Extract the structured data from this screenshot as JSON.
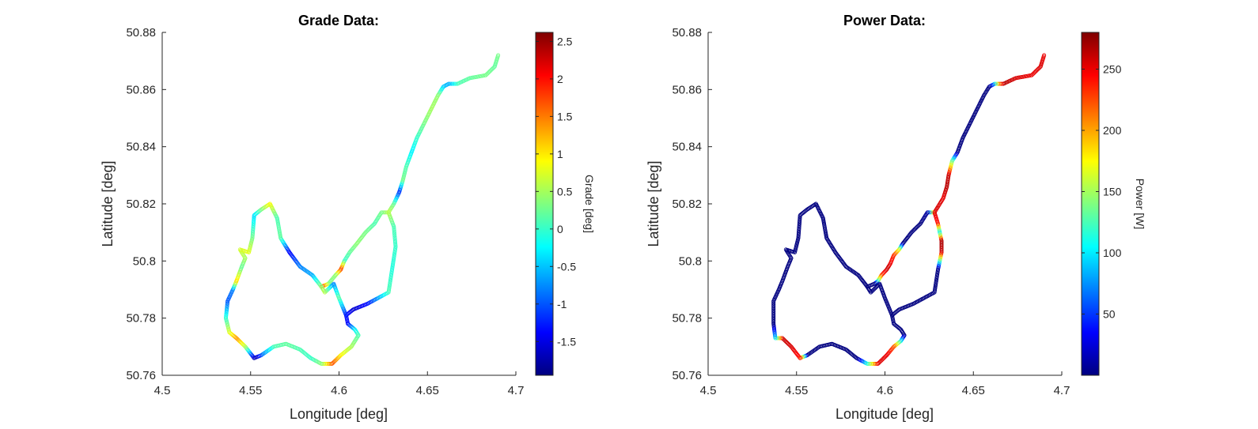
{
  "chart_data": [
    {
      "type": "scatter",
      "title": "Grade Data:",
      "xlabel": "Longitude [deg]",
      "ylabel": "Latitude [deg]",
      "xlim": [
        4.5,
        4.7
      ],
      "ylim": [
        50.76,
        50.88
      ],
      "xticks": [
        4.5,
        4.55,
        4.6,
        4.65,
        4.7
      ],
      "xtick_labels": [
        "4.5",
        "4.55",
        "4.6",
        "4.65",
        "4.7"
      ],
      "yticks": [
        50.76,
        50.78,
        50.8,
        50.82,
        50.84,
        50.86,
        50.88
      ],
      "ytick_labels": [
        "50.76",
        "50.78",
        "50.8",
        "50.82",
        "50.84",
        "50.86",
        "50.88"
      ],
      "grid": false,
      "marker": "circle-open",
      "colormap": "jet",
      "colorbar": {
        "label": "Grade [deg]",
        "range": [
          -1.95,
          2.62
        ],
        "ticks": [
          -1.5,
          -1,
          -0.5,
          0,
          0.5,
          1,
          1.5,
          2,
          2.5
        ],
        "tick_labels": [
          "-1.5",
          "-1",
          "-0.5",
          "0",
          "0.5",
          "1",
          "1.5",
          "2",
          "2.5"
        ]
      },
      "segments": [
        {
          "route": "north",
          "points": [
            [
              4.69,
              50.872,
              0.3
            ],
            [
              4.688,
              50.868,
              0.2
            ],
            [
              4.683,
              50.865,
              0.3
            ],
            [
              4.674,
              50.864,
              0.2
            ],
            [
              4.667,
              50.862,
              0.1
            ],
            [
              4.662,
              50.862,
              -0.6
            ],
            [
              4.659,
              50.861,
              -0.5
            ],
            [
              4.656,
              50.858,
              0.4
            ],
            [
              4.652,
              50.853,
              0.5
            ],
            [
              4.648,
              50.848,
              0.3
            ],
            [
              4.644,
              50.843,
              0.0
            ],
            [
              4.641,
              50.838,
              -0.3
            ],
            [
              4.638,
              50.833,
              0.1
            ],
            [
              4.636,
              50.828,
              0.3
            ],
            [
              4.634,
              50.824,
              -1.2
            ],
            [
              4.631,
              50.82,
              0.2
            ],
            [
              4.628,
              50.817,
              0.6
            ],
            [
              4.624,
              50.817,
              0.3
            ],
            [
              4.62,
              50.813,
              0.1
            ],
            [
              4.615,
              50.81,
              0.3
            ],
            [
              4.61,
              50.806,
              0.4
            ],
            [
              4.606,
              50.803,
              0.2
            ],
            [
              4.603,
              50.8,
              0.0
            ],
            [
              4.601,
              50.797,
              1.8
            ],
            [
              4.598,
              50.795,
              0.4
            ],
            [
              4.594,
              50.792,
              0.3
            ],
            [
              4.59,
              50.791,
              1.9
            ]
          ]
        },
        {
          "route": "east-loop",
          "points": [
            [
              4.628,
              50.817,
              0.6
            ],
            [
              4.631,
              50.812,
              0.1
            ],
            [
              4.632,
              50.805,
              0.0
            ],
            [
              4.63,
              50.797,
              -0.1
            ],
            [
              4.628,
              50.789,
              0.1
            ],
            [
              4.622,
              50.787,
              -0.6
            ],
            [
              4.616,
              50.785,
              -1.3
            ],
            [
              4.608,
              50.783,
              -1.6
            ],
            [
              4.604,
              50.781,
              -1.3
            ],
            [
              4.605,
              50.778,
              -1.4
            ],
            [
              4.609,
              50.776,
              -0.3
            ],
            [
              4.611,
              50.774,
              0.1
            ],
            [
              4.607,
              50.77,
              0.5
            ],
            [
              4.601,
              50.767,
              0.9
            ],
            [
              4.596,
              50.764,
              1.7
            ],
            [
              4.59,
              50.764,
              0.4
            ],
            [
              4.584,
              50.766,
              0.0
            ],
            [
              4.578,
              50.769,
              0.1
            ],
            [
              4.57,
              50.771,
              0.2
            ],
            [
              4.563,
              50.77,
              0.1
            ],
            [
              4.556,
              50.767,
              -0.9
            ],
            [
              4.552,
              50.766,
              -1.8
            ],
            [
              4.547,
              50.77,
              0.5
            ],
            [
              4.542,
              50.773,
              1.4
            ],
            [
              4.538,
              50.775,
              0.8
            ],
            [
              4.536,
              50.78,
              0.0
            ],
            [
              4.537,
              50.786,
              -1.0
            ],
            [
              4.54,
              50.79,
              -0.8
            ],
            [
              4.542,
              50.793,
              1.1
            ],
            [
              4.545,
              50.798,
              0.2
            ],
            [
              4.547,
              50.801,
              0.5
            ],
            [
              4.544,
              50.804,
              0.7
            ],
            [
              4.549,
              50.803,
              0.8
            ],
            [
              4.551,
              50.808,
              0.3
            ],
            [
              4.552,
              50.816,
              -0.4
            ],
            [
              4.556,
              50.818,
              0.3
            ],
            [
              4.561,
              50.82,
              0.9
            ],
            [
              4.565,
              50.815,
              0.1
            ],
            [
              4.567,
              50.808,
              0.2
            ],
            [
              4.572,
              50.803,
              -1.4
            ],
            [
              4.578,
              50.798,
              -0.8
            ],
            [
              4.585,
              50.795,
              -0.6
            ],
            [
              4.59,
              50.791,
              0.4
            ],
            [
              4.592,
              50.789,
              0.6
            ],
            [
              4.597,
              50.792,
              -0.8
            ],
            [
              4.6,
              50.787,
              0.2
            ],
            [
              4.604,
              50.781,
              -1.3
            ]
          ]
        }
      ]
    },
    {
      "type": "scatter",
      "title": "Power Data:",
      "xlabel": "Longitude [deg]",
      "ylabel": "Latitude [deg]",
      "xlim": [
        4.5,
        4.7
      ],
      "ylim": [
        50.76,
        50.88
      ],
      "xticks": [
        4.5,
        4.55,
        4.6,
        4.65,
        4.7
      ],
      "xtick_labels": [
        "4.5",
        "4.55",
        "4.6",
        "4.65",
        "4.7"
      ],
      "yticks": [
        50.76,
        50.78,
        50.8,
        50.82,
        50.84,
        50.86,
        50.88
      ],
      "ytick_labels": [
        "50.76",
        "50.78",
        "50.8",
        "50.82",
        "50.84",
        "50.86",
        "50.88"
      ],
      "grid": false,
      "marker": "circle-open",
      "colormap": "jet",
      "colorbar": {
        "label": "Power [W]",
        "range": [
          0,
          280
        ],
        "ticks": [
          50,
          100,
          150,
          200,
          250
        ],
        "tick_labels": [
          "50",
          "100",
          "150",
          "200",
          "250"
        ]
      },
      "segments": [
        {
          "route": "north",
          "points": [
            [
              4.69,
              50.872,
              250
            ],
            [
              4.688,
              50.868,
              255
            ],
            [
              4.683,
              50.865,
              250
            ],
            [
              4.674,
              50.864,
              255
            ],
            [
              4.667,
              50.862,
              265
            ],
            [
              4.664,
              50.862,
              200
            ],
            [
              4.662,
              50.862,
              100
            ],
            [
              4.659,
              50.861,
              0
            ],
            [
              4.656,
              50.858,
              0
            ],
            [
              4.652,
              50.853,
              0
            ],
            [
              4.648,
              50.848,
              0
            ],
            [
              4.644,
              50.843,
              0
            ],
            [
              4.641,
              50.838,
              0
            ],
            [
              4.638,
              50.835,
              130
            ],
            [
              4.636,
              50.83,
              260
            ],
            [
              4.635,
              50.826,
              265
            ],
            [
              4.633,
              50.822,
              250
            ],
            [
              4.631,
              50.82,
              255
            ],
            [
              4.628,
              50.817,
              255
            ],
            [
              4.624,
              50.817,
              10
            ],
            [
              4.62,
              50.813,
              0
            ],
            [
              4.615,
              50.81,
              0
            ],
            [
              4.61,
              50.806,
              0
            ],
            [
              4.608,
              50.804,
              160
            ],
            [
              4.605,
              50.802,
              230
            ],
            [
              4.603,
              50.799,
              250
            ],
            [
              4.601,
              50.797,
              260
            ],
            [
              4.598,
              50.795,
              230
            ],
            [
              4.596,
              50.793,
              130
            ],
            [
              4.594,
              50.792,
              0
            ],
            [
              4.59,
              50.791,
              0
            ]
          ]
        },
        {
          "route": "east-loop",
          "points": [
            [
              4.628,
              50.817,
              255
            ],
            [
              4.63,
              50.813,
              240
            ],
            [
              4.631,
              50.81,
              100
            ],
            [
              4.632,
              50.807,
              270
            ],
            [
              4.632,
              50.803,
              260
            ],
            [
              4.63,
              50.797,
              0
            ],
            [
              4.628,
              50.789,
              0
            ],
            [
              4.622,
              50.787,
              0
            ],
            [
              4.616,
              50.785,
              0
            ],
            [
              4.608,
              50.783,
              0
            ],
            [
              4.604,
              50.781,
              0
            ],
            [
              4.605,
              50.778,
              0
            ],
            [
              4.609,
              50.776,
              0
            ],
            [
              4.611,
              50.774,
              0
            ],
            [
              4.609,
              50.772,
              100
            ],
            [
              4.605,
              50.77,
              220
            ],
            [
              4.601,
              50.767,
              250
            ],
            [
              4.596,
              50.764,
              255
            ],
            [
              4.59,
              50.764,
              120
            ],
            [
              4.584,
              50.766,
              0
            ],
            [
              4.578,
              50.769,
              0
            ],
            [
              4.57,
              50.771,
              0
            ],
            [
              4.563,
              50.77,
              0
            ],
            [
              4.556,
              50.767,
              0
            ],
            [
              4.552,
              50.766,
              240
            ],
            [
              4.547,
              50.77,
              255
            ],
            [
              4.542,
              50.773,
              260
            ],
            [
              4.538,
              50.773,
              100
            ],
            [
              4.537,
              50.778,
              0
            ],
            [
              4.537,
              50.786,
              0
            ],
            [
              4.54,
              50.79,
              0
            ],
            [
              4.542,
              50.793,
              0
            ],
            [
              4.545,
              50.798,
              0
            ],
            [
              4.547,
              50.801,
              0
            ],
            [
              4.544,
              50.804,
              0
            ],
            [
              4.549,
              50.803,
              0
            ],
            [
              4.551,
              50.808,
              0
            ],
            [
              4.552,
              50.816,
              0
            ],
            [
              4.556,
              50.818,
              0
            ],
            [
              4.561,
              50.82,
              0
            ],
            [
              4.565,
              50.815,
              0
            ],
            [
              4.567,
              50.808,
              0
            ],
            [
              4.572,
              50.803,
              0
            ],
            [
              4.578,
              50.798,
              0
            ],
            [
              4.585,
              50.795,
              0
            ],
            [
              4.59,
              50.791,
              0
            ],
            [
              4.592,
              50.789,
              0
            ],
            [
              4.597,
              50.792,
              0
            ],
            [
              4.6,
              50.787,
              0
            ],
            [
              4.604,
              50.781,
              0
            ]
          ]
        }
      ]
    }
  ]
}
